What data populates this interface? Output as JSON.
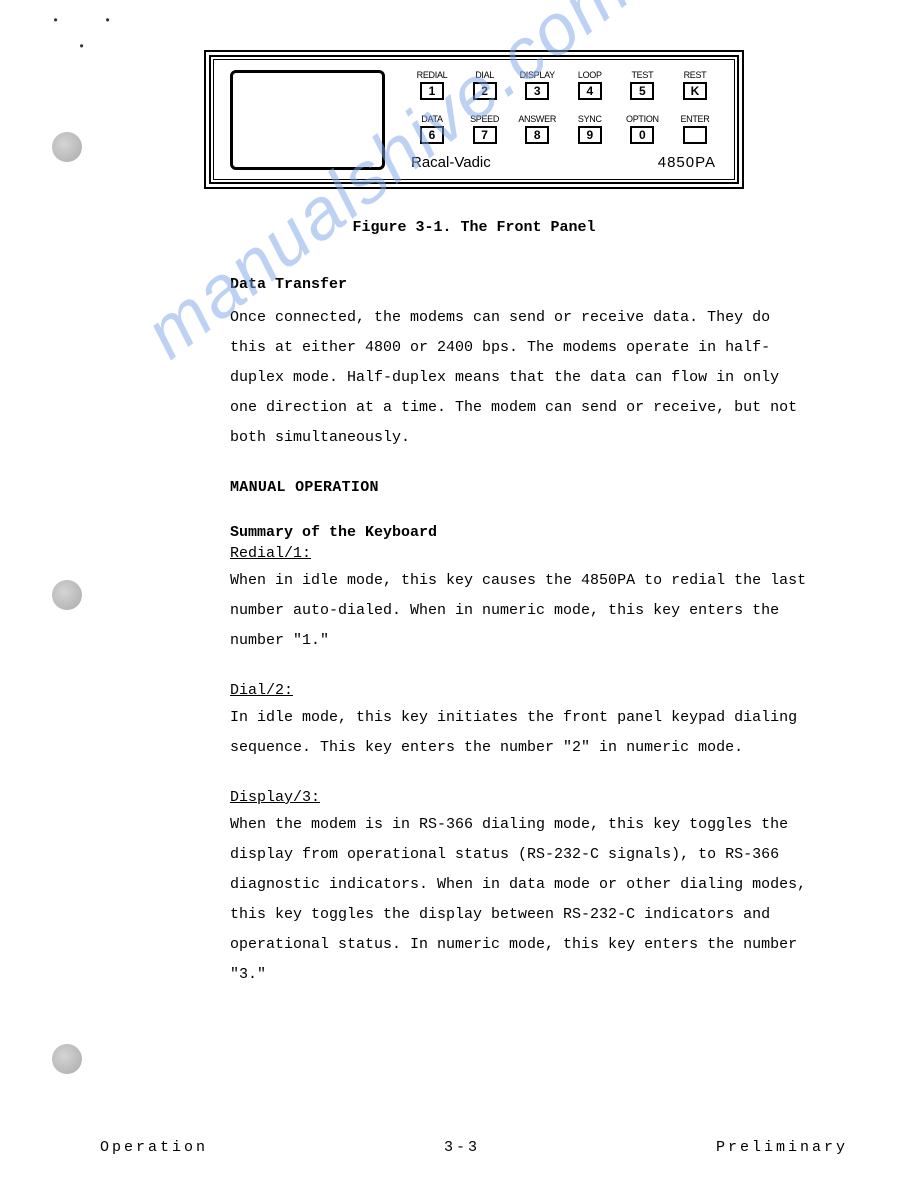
{
  "panel": {
    "row1": [
      {
        "label": "REDIAL",
        "key": "1"
      },
      {
        "label": "DIAL",
        "key": "2"
      },
      {
        "label": "DISPLAY",
        "key": "3"
      },
      {
        "label": "LOOP",
        "key": "4"
      },
      {
        "label": "TEST",
        "key": "5"
      },
      {
        "label": "REST",
        "key": "K"
      }
    ],
    "row2": [
      {
        "label": "DATA",
        "key": "6"
      },
      {
        "label": "SPEED",
        "key": "7"
      },
      {
        "label": "ANSWER",
        "key": "8"
      },
      {
        "label": "SYNC",
        "key": "9"
      },
      {
        "label": "OPTION",
        "key": "0"
      },
      {
        "label": "ENTER",
        "key": ""
      }
    ],
    "brand": "Racal-Vadic",
    "model": "4850PA"
  },
  "caption": "Figure 3-1.  The Front Panel",
  "s1": {
    "head": "Data Transfer",
    "body": "Once connected, the modems can send or receive data.  They do this at either 4800 or 2400 bps.  The modems operate in half-duplex mode.  Half-duplex means that the data can flow in only one direction at a time.  The modem can send or receive, but not both simultaneously."
  },
  "s2": {
    "head": "MANUAL OPERATION"
  },
  "s3": {
    "head": "Summary of the Keyboard"
  },
  "k1": {
    "head": "Redial/1:",
    "body": "When in idle mode, this key causes the 4850PA to redial the last number auto-dialed.  When in numeric mode, this key enters the number \"1.\""
  },
  "k2": {
    "head": "Dial/2:",
    "body": "In idle mode, this key initiates the front panel keypad dialing sequence.  This key enters the number \"2\" in numeric mode."
  },
  "k3": {
    "head": "Display/3:",
    "body": "When the modem is in RS-366 dialing mode, this key toggles the display from operational status (RS-232-C signals), to RS-366 diagnostic indicators.  When in data mode or other dialing modes, this key toggles the display between RS-232-C indicators and operational status.  In numeric mode, this key enters the number \"3.\""
  },
  "footer": {
    "left": "Operation",
    "center": "3-3",
    "right": "Preliminary"
  },
  "watermark": "manualshive.com"
}
